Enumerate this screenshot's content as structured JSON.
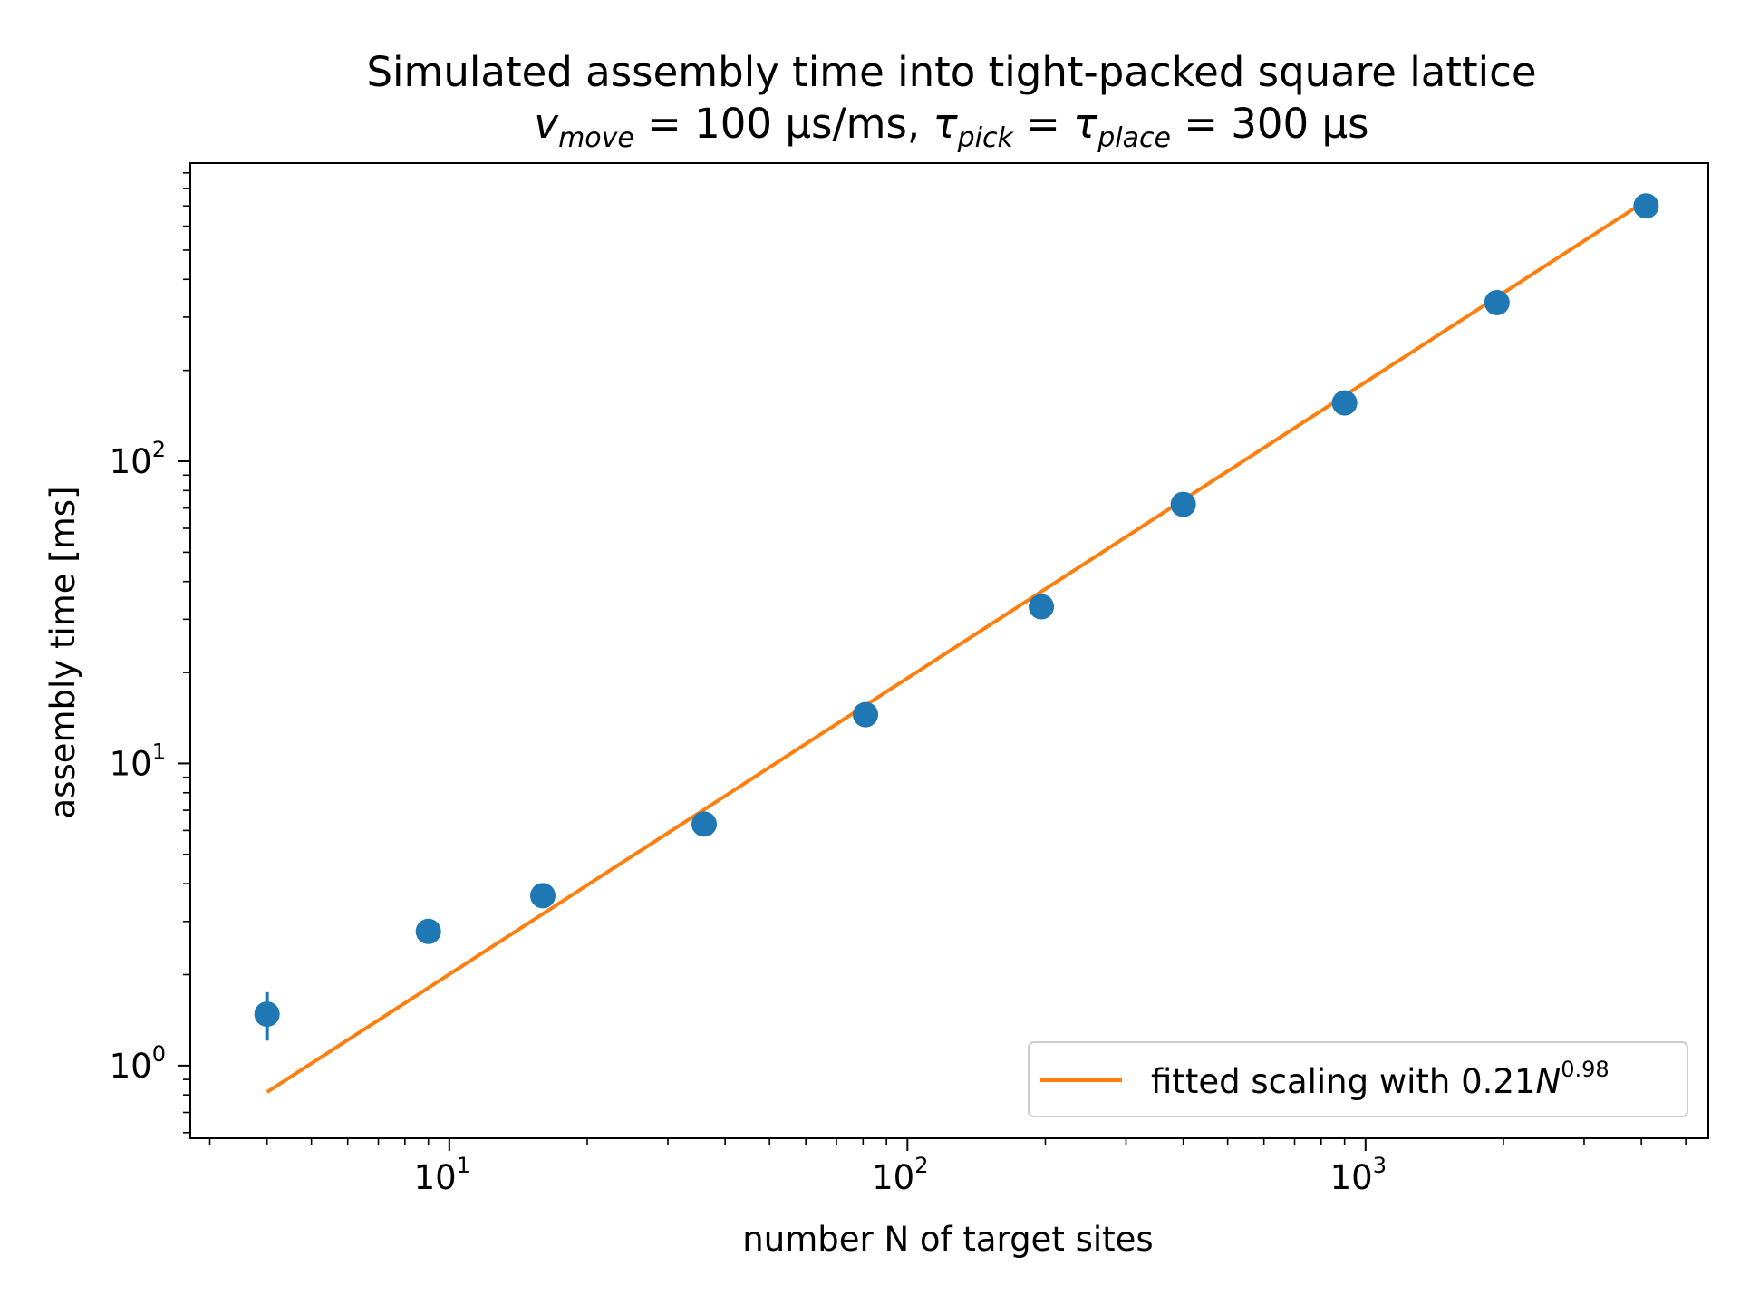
{
  "chart_data": {
    "type": "scatter",
    "title": "Simulated assembly time into tight-packed square lattice",
    "subtitle": {
      "v_symbol": "v",
      "v_sub": "move",
      "v_value": " = 100 μs/ms, ",
      "tau1_symbol": "τ",
      "tau1_sub": "pick",
      "eq": " = ",
      "tau2_symbol": "τ",
      "tau2_sub": "place",
      "tau_value": " = 300 μs"
    },
    "xlabel": "number N of target sites",
    "ylabel": "assembly time [ms]",
    "xscale": "log",
    "yscale": "log",
    "xlim": [
      2.72,
      5600
    ],
    "ylim": [
      0.575,
      970
    ],
    "grid": false,
    "x_ticks": [
      {
        "base": "10",
        "exp": "1",
        "value": 10
      },
      {
        "base": "10",
        "exp": "2",
        "value": 100
      },
      {
        "base": "10",
        "exp": "3",
        "value": 1000
      }
    ],
    "y_ticks": [
      {
        "base": "10",
        "exp": "0",
        "value": 1
      },
      {
        "base": "10",
        "exp": "1",
        "value": 10
      },
      {
        "base": "10",
        "exp": "2",
        "value": 100
      }
    ],
    "series": [
      {
        "kind": "scatter",
        "color": "#1f77b4",
        "x": [
          4,
          9,
          16,
          36,
          81,
          196,
          400,
          900,
          1936,
          4096
        ],
        "y": [
          1.48,
          2.78,
          3.65,
          6.3,
          14.5,
          33,
          72,
          156,
          335,
          700
        ],
        "yerr": [
          0.27,
          0.25,
          0.12,
          0.5,
          0.4,
          0.6,
          1.2,
          2.5,
          5,
          8
        ]
      },
      {
        "kind": "line",
        "name": "fitted scaling with 0.21N",
        "name_exp": "0.98",
        "color": "#ff7f0e",
        "coef": 0.21,
        "exponent": 0.98,
        "x_range": [
          4,
          4096
        ]
      }
    ],
    "legend_position": "lower-right"
  }
}
